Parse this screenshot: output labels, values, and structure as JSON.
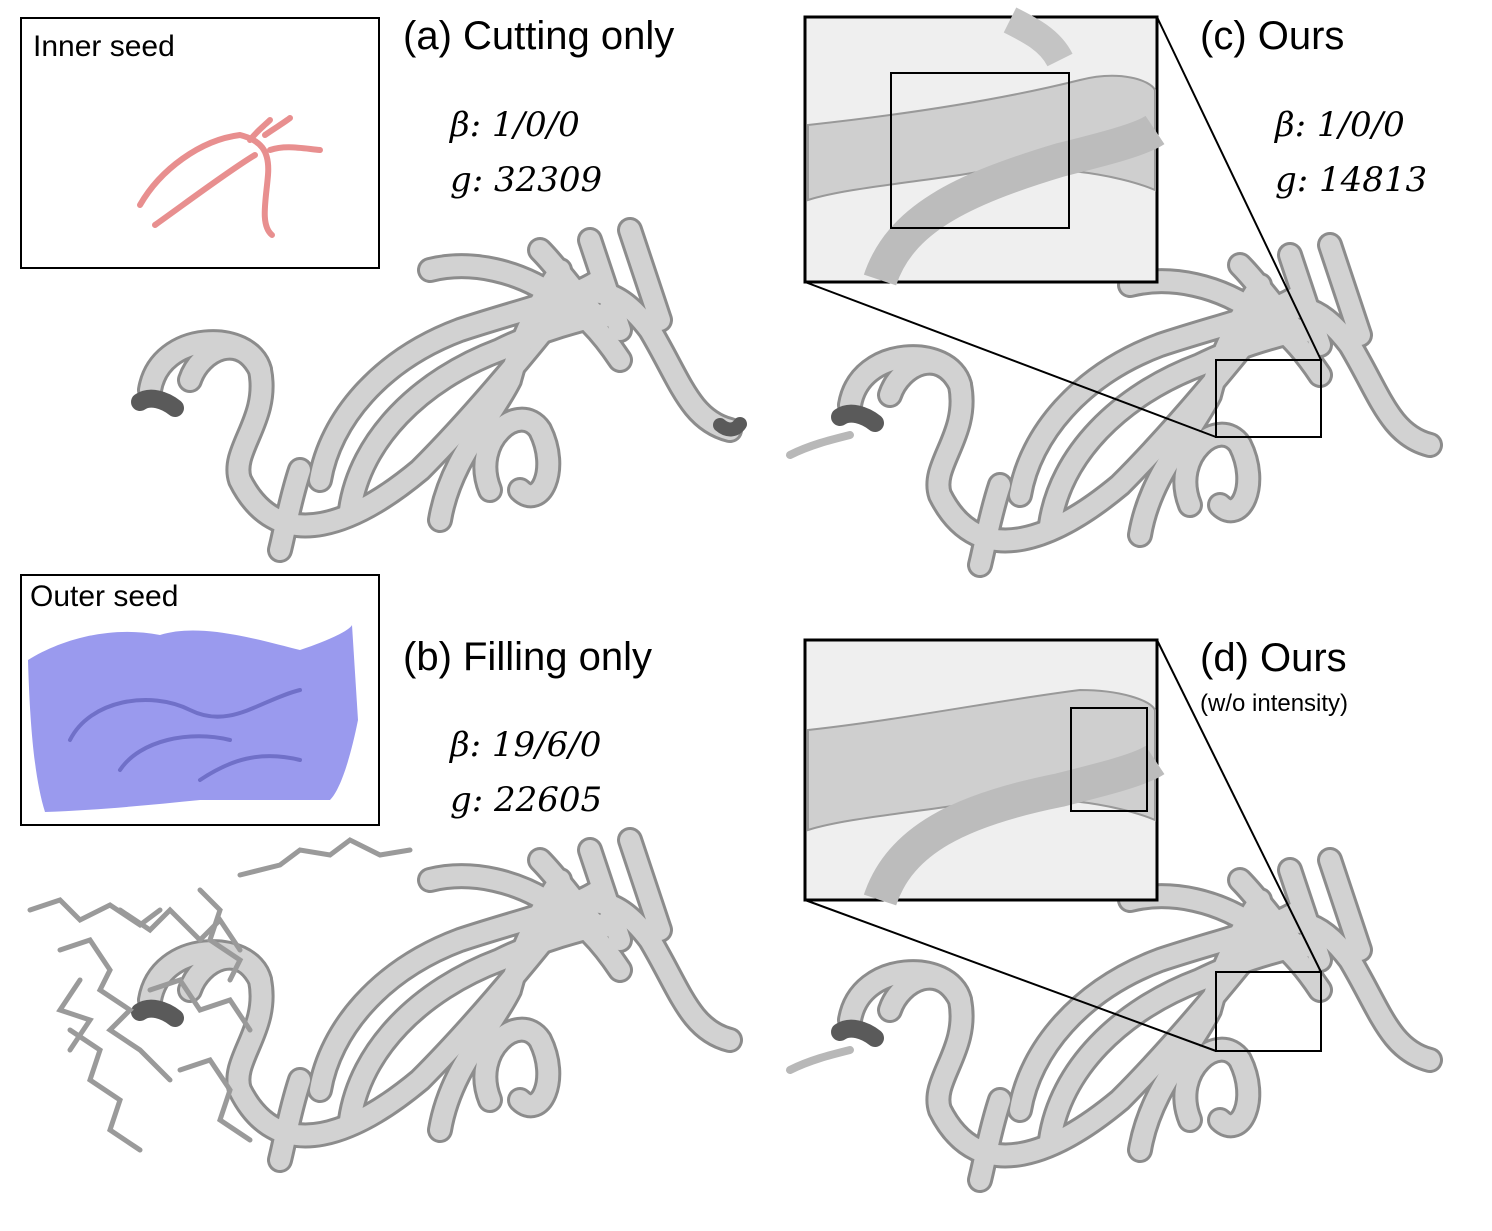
{
  "panels": {
    "a": {
      "title": "(a) Cutting only",
      "beta_key": "β",
      "beta": "1/0/0",
      "g_key": "g",
      "g": "32309"
    },
    "b": {
      "title": "(b) Filling only",
      "beta_key": "β",
      "beta": "19/6/0",
      "g_key": "g",
      "g": "22605"
    },
    "c": {
      "title": "(c) Ours",
      "beta_key": "β",
      "beta": "1/0/0",
      "g_key": "g",
      "g": "14813"
    },
    "d": {
      "title": "(d) Ours",
      "subtitle": "(w/o intensity)"
    }
  },
  "insets": {
    "inner": {
      "label": "Inner seed",
      "color": "#e88f8f"
    },
    "outer": {
      "label": "Outer seed",
      "color": "#9a9aee"
    }
  },
  "colors": {
    "vessel": "#d2d2d2",
    "vessel_stroke": "#8c8c8c",
    "vessel_dark": "#5a5a5a"
  }
}
